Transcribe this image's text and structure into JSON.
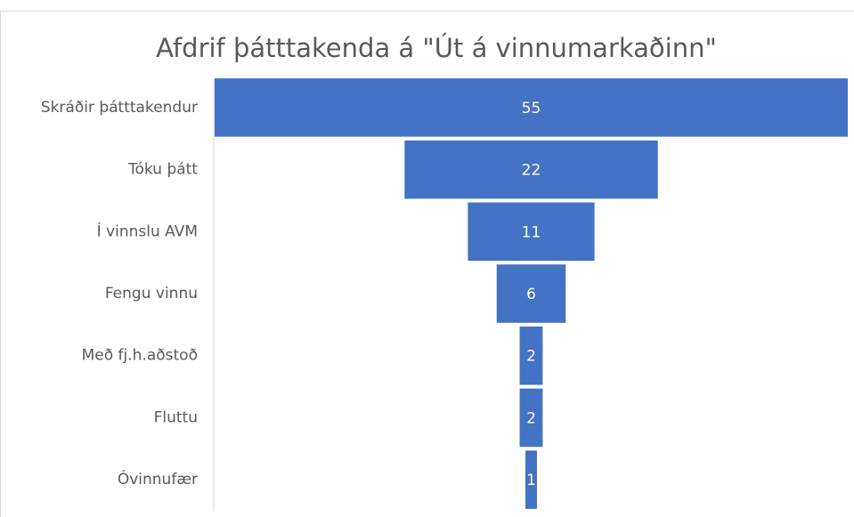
{
  "chart_data": {
    "type": "funnel",
    "title": "Afdrif þátttakenda á \"Út á vinnumarkaðinn\"",
    "categories": [
      "Skráðir þátttakendur",
      "Tóku þátt",
      "Í vinnslu AVM",
      "Fengu vinnu",
      "Með fj.h.aðstoð",
      "Fluttu",
      "Óvinnufær"
    ],
    "values": [
      55,
      22,
      11,
      6,
      2,
      2,
      1
    ],
    "color": "#4472c4"
  }
}
